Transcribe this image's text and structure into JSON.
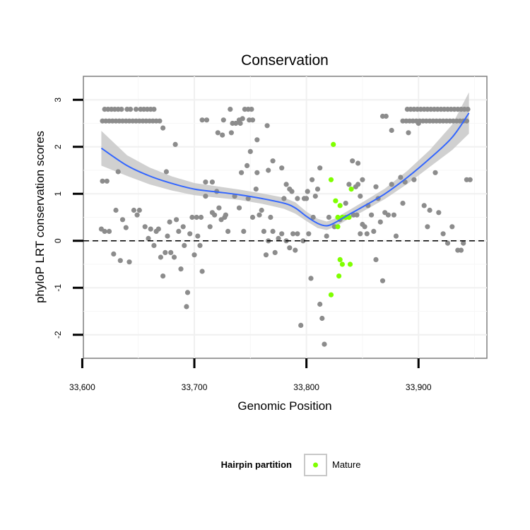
{
  "chart_data": {
    "type": "scatter",
    "title": "Conservation",
    "xlabel": "Genomic Position",
    "ylabel": "phyloP LRT conservation scores",
    "xlim": [
      33601,
      33961
    ],
    "ylim": [
      -2.5,
      3.5
    ],
    "x_ticks": [
      33600,
      33700,
      33800,
      33900
    ],
    "x_tick_labels": [
      "33,600",
      "33,700",
      "33,800",
      "33,900"
    ],
    "y_ticks": [
      -2,
      -1,
      0,
      1,
      2,
      3
    ],
    "y_tick_labels": [
      "-2",
      "-1",
      "0",
      "1",
      "2",
      "3"
    ],
    "grid": true,
    "reference_line": {
      "y": 0,
      "style": "dashed",
      "color": "#000000"
    },
    "legend": {
      "position": "bottom",
      "title": "Hairpin partition",
      "entries": [
        {
          "label": "Mature",
          "color": "#7fff00"
        }
      ]
    },
    "colors": {
      "points": "#8c8c8c",
      "mature": "#7fff00",
      "smooth": "#3366ff",
      "ribbon": "#c8c8c8"
    },
    "series": [
      {
        "name": "",
        "color": "#8c8c8c",
        "points": [
          [
            33620,
            2.8
          ],
          [
            33623,
            2.8
          ],
          [
            33626,
            2.8
          ],
          [
            33629,
            2.8
          ],
          [
            33632,
            2.8
          ],
          [
            33635,
            2.8
          ],
          [
            33640,
            2.8
          ],
          [
            33643,
            2.8
          ],
          [
            33648,
            2.8
          ],
          [
            33652,
            2.8
          ],
          [
            33655,
            2.8
          ],
          [
            33658,
            2.8
          ],
          [
            33661,
            2.8
          ],
          [
            33664,
            2.8
          ],
          [
            33618,
            2.55
          ],
          [
            33621,
            2.55
          ],
          [
            33624,
            2.55
          ],
          [
            33627,
            2.55
          ],
          [
            33630,
            2.55
          ],
          [
            33633,
            2.55
          ],
          [
            33636,
            2.55
          ],
          [
            33639,
            2.55
          ],
          [
            33642,
            2.55
          ],
          [
            33645,
            2.55
          ],
          [
            33648,
            2.55
          ],
          [
            33651,
            2.55
          ],
          [
            33654,
            2.55
          ],
          [
            33657,
            2.55
          ],
          [
            33660,
            2.55
          ],
          [
            33663,
            2.55
          ],
          [
            33666,
            2.55
          ],
          [
            33669,
            2.55
          ],
          [
            33672,
            2.4
          ],
          [
            33683,
            2.05
          ],
          [
            33675,
            1.47
          ],
          [
            33632,
            1.47
          ],
          [
            33618,
            1.27
          ],
          [
            33622,
            1.27
          ],
          [
            33710,
            1.25
          ],
          [
            33716,
            1.25
          ],
          [
            33707,
            2.57
          ],
          [
            33711,
            2.57
          ],
          [
            33726,
            2.57
          ],
          [
            33740,
            2.57
          ],
          [
            33749,
            2.57
          ],
          [
            33752,
            2.57
          ],
          [
            33745,
            2.8
          ],
          [
            33748,
            2.8
          ],
          [
            33751,
            2.8
          ],
          [
            33732,
            2.8
          ],
          [
            33743,
            2.6
          ],
          [
            33741,
            2.5
          ],
          [
            33737,
            2.5
          ],
          [
            33734,
            2.5
          ],
          [
            33733,
            2.3
          ],
          [
            33721,
            2.3
          ],
          [
            33725,
            2.25
          ],
          [
            33765,
            2.45
          ],
          [
            33756,
            2.15
          ],
          [
            33750,
            1.9
          ],
          [
            33770,
            1.7
          ],
          [
            33747,
            1.6
          ],
          [
            33742,
            1.45
          ],
          [
            33756,
            1.45
          ],
          [
            33766,
            1.5
          ],
          [
            33778,
            1.55
          ],
          [
            33782,
            1.2
          ],
          [
            33785,
            1.1
          ],
          [
            33787,
            1.05
          ],
          [
            33792,
            0.9
          ],
          [
            33798,
            0.9
          ],
          [
            33801,
            1.05
          ],
          [
            33805,
            1.3
          ],
          [
            33812,
            1.55
          ],
          [
            33617,
            0.25
          ],
          [
            33620,
            0.2
          ],
          [
            33624,
            0.2
          ],
          [
            33628,
            -0.28
          ],
          [
            33630,
            0.65
          ],
          [
            33634,
            -0.42
          ],
          [
            33636,
            0.45
          ],
          [
            33639,
            0.28
          ],
          [
            33642,
            -0.45
          ],
          [
            33646,
            0.65
          ],
          [
            33649,
            0.55
          ],
          [
            33651,
            0.65
          ],
          [
            33656,
            0.3
          ],
          [
            33659,
            0.05
          ],
          [
            33661,
            0.25
          ],
          [
            33664,
            -0.1
          ],
          [
            33666,
            0.2
          ],
          [
            33668,
            0.25
          ],
          [
            33670,
            -0.35
          ],
          [
            33672,
            -0.75
          ],
          [
            33674,
            -0.25
          ],
          [
            33676,
            0.1
          ],
          [
            33678,
            0.4
          ],
          [
            33679,
            -0.25
          ],
          [
            33682,
            -0.35
          ],
          [
            33684,
            0.45
          ],
          [
            33686,
            0.2
          ],
          [
            33688,
            -0.6
          ],
          [
            33690,
            0.3
          ],
          [
            33691,
            -0.1
          ],
          [
            33693,
            -1.4
          ],
          [
            33694,
            -1.1
          ],
          [
            33696,
            0.15
          ],
          [
            33698,
            0.5
          ],
          [
            33700,
            -0.3
          ],
          [
            33702,
            0.5
          ],
          [
            33703,
            0.1
          ],
          [
            33705,
            -0.1
          ],
          [
            33706,
            0.5
          ],
          [
            33707,
            -0.65
          ],
          [
            33710,
            0.95
          ],
          [
            33714,
            0.3
          ],
          [
            33716,
            0.6
          ],
          [
            33718,
            0.55
          ],
          [
            33720,
            1.05
          ],
          [
            33722,
            0.7
          ],
          [
            33724,
            0.45
          ],
          [
            33727,
            0.5
          ],
          [
            33728,
            0.55
          ],
          [
            33730,
            0.2
          ],
          [
            33736,
            0.95
          ],
          [
            33740,
            0.7
          ],
          [
            33744,
            0.2
          ],
          [
            33748,
            0.9
          ],
          [
            33752,
            0.5
          ],
          [
            33755,
            1.1
          ],
          [
            33758,
            0.55
          ],
          [
            33760,
            0.65
          ],
          [
            33762,
            0.2
          ],
          [
            33764,
            -0.3
          ],
          [
            33766,
            0.0
          ],
          [
            33768,
            0.5
          ],
          [
            33770,
            0.2
          ],
          [
            33772,
            -0.25
          ],
          [
            33775,
            0.05
          ],
          [
            33778,
            0.15
          ],
          [
            33780,
            0.9
          ],
          [
            33782,
            0.0
          ],
          [
            33785,
            -0.15
          ],
          [
            33788,
            0.15
          ],
          [
            33790,
            -0.2
          ],
          [
            33792,
            0.15
          ],
          [
            33795,
            -1.8
          ],
          [
            33797,
            0.0
          ],
          [
            33800,
            0.9
          ],
          [
            33802,
            0.15
          ],
          [
            33804,
            -0.8
          ],
          [
            33806,
            0.5
          ],
          [
            33808,
            0.95
          ],
          [
            33810,
            1.1
          ],
          [
            33812,
            -1.35
          ],
          [
            33814,
            -1.65
          ],
          [
            33816,
            -2.2
          ],
          [
            33818,
            0.1
          ],
          [
            33820,
            0.5
          ],
          [
            33825,
            0.3
          ],
          [
            33830,
            0.45
          ],
          [
            33835,
            0.8
          ],
          [
            33838,
            1.2
          ],
          [
            33842,
            0.55
          ],
          [
            33844,
            1.15
          ],
          [
            33846,
            1.2
          ],
          [
            33848,
            0.95
          ],
          [
            33850,
            1.3
          ],
          [
            33852,
            0.3
          ],
          [
            33855,
            0.75
          ],
          [
            33858,
            0.55
          ],
          [
            33860,
            0.2
          ],
          [
            33862,
            1.15
          ],
          [
            33864,
            0.9
          ],
          [
            33866,
            0.4
          ],
          [
            33868,
            -0.85
          ],
          [
            33870,
            0.6
          ],
          [
            33873,
            0.55
          ],
          [
            33876,
            1.2
          ],
          [
            33878,
            0.55
          ],
          [
            33880,
            0.1
          ],
          [
            33884,
            1.35
          ],
          [
            33886,
            0.8
          ],
          [
            33888,
            1.25
          ],
          [
            33891,
            2.3
          ],
          [
            33896,
            1.3
          ],
          [
            33900,
            2.5
          ],
          [
            33905,
            0.75
          ],
          [
            33908,
            0.3
          ],
          [
            33910,
            0.65
          ],
          [
            33915,
            1.45
          ],
          [
            33918,
            0.6
          ],
          [
            33922,
            0.15
          ],
          [
            33926,
            -0.05
          ],
          [
            33930,
            0.3
          ],
          [
            33935,
            -0.2
          ],
          [
            33938,
            -0.2
          ],
          [
            33940,
            -0.05
          ],
          [
            33943,
            1.3
          ],
          [
            33946,
            1.3
          ],
          [
            33868,
            2.65
          ],
          [
            33871,
            2.65
          ],
          [
            33876,
            2.35
          ],
          [
            33841,
            1.7
          ],
          [
            33846,
            1.65
          ],
          [
            33848,
            0.15
          ],
          [
            33862,
            -0.4
          ],
          [
            33845,
            0.55
          ],
          [
            33850,
            0.35
          ],
          [
            33854,
            0.15
          ],
          [
            33890,
            2.8
          ],
          [
            33893,
            2.8
          ],
          [
            33896,
            2.8
          ],
          [
            33899,
            2.8
          ],
          [
            33902,
            2.8
          ],
          [
            33905,
            2.8
          ],
          [
            33908,
            2.8
          ],
          [
            33911,
            2.8
          ],
          [
            33914,
            2.8
          ],
          [
            33917,
            2.8
          ],
          [
            33920,
            2.8
          ],
          [
            33923,
            2.8
          ],
          [
            33926,
            2.8
          ],
          [
            33929,
            2.8
          ],
          [
            33932,
            2.8
          ],
          [
            33935,
            2.8
          ],
          [
            33938,
            2.8
          ],
          [
            33941,
            2.8
          ],
          [
            33944,
            2.8
          ],
          [
            33886,
            2.55
          ],
          [
            33889,
            2.55
          ],
          [
            33892,
            2.55
          ],
          [
            33895,
            2.55
          ],
          [
            33898,
            2.55
          ],
          [
            33901,
            2.55
          ],
          [
            33904,
            2.55
          ],
          [
            33907,
            2.55
          ],
          [
            33910,
            2.55
          ],
          [
            33913,
            2.55
          ],
          [
            33916,
            2.55
          ],
          [
            33919,
            2.55
          ],
          [
            33922,
            2.55
          ],
          [
            33925,
            2.55
          ],
          [
            33928,
            2.55
          ],
          [
            33931,
            2.55
          ],
          [
            33934,
            2.55
          ],
          [
            33937,
            2.55
          ],
          [
            33940,
            2.55
          ],
          [
            33943,
            2.55
          ]
        ]
      },
      {
        "name": "Mature",
        "color": "#7fff00",
        "points": [
          [
            33824,
            2.05
          ],
          [
            33822,
            1.3
          ],
          [
            33826,
            0.85
          ],
          [
            33830,
            0.75
          ],
          [
            33828,
            0.5
          ],
          [
            33832,
            0.5
          ],
          [
            33835,
            0.5
          ],
          [
            33838,
            0.5
          ],
          [
            33840,
            1.1
          ],
          [
            33828,
            0.3
          ],
          [
            33830,
            -0.4
          ],
          [
            33832,
            -0.5
          ],
          [
            33839,
            -0.5
          ],
          [
            33829,
            -0.75
          ],
          [
            33822,
            -1.15
          ]
        ]
      }
    ],
    "smooth": {
      "x": [
        33617,
        33640,
        33660,
        33680,
        33700,
        33720,
        33740,
        33760,
        33780,
        33790,
        33800,
        33810,
        33818,
        33825,
        33835,
        33850,
        33870,
        33890,
        33910,
        33930,
        33945
      ],
      "y": [
        1.97,
        1.6,
        1.38,
        1.22,
        1.1,
        1.04,
        0.98,
        0.9,
        0.8,
        0.7,
        0.52,
        0.37,
        0.32,
        0.38,
        0.52,
        0.72,
        1.0,
        1.35,
        1.75,
        2.2,
        2.72
      ],
      "lower": [
        1.6,
        1.38,
        1.2,
        1.07,
        0.97,
        0.92,
        0.87,
        0.79,
        0.68,
        0.58,
        0.42,
        0.27,
        0.23,
        0.29,
        0.43,
        0.62,
        0.89,
        1.21,
        1.57,
        1.93,
        2.28
      ],
      "upper": [
        2.34,
        1.82,
        1.56,
        1.37,
        1.23,
        1.16,
        1.09,
        1.01,
        0.92,
        0.82,
        0.62,
        0.47,
        0.41,
        0.47,
        0.61,
        0.82,
        1.11,
        1.49,
        1.93,
        2.47,
        3.16
      ]
    }
  }
}
